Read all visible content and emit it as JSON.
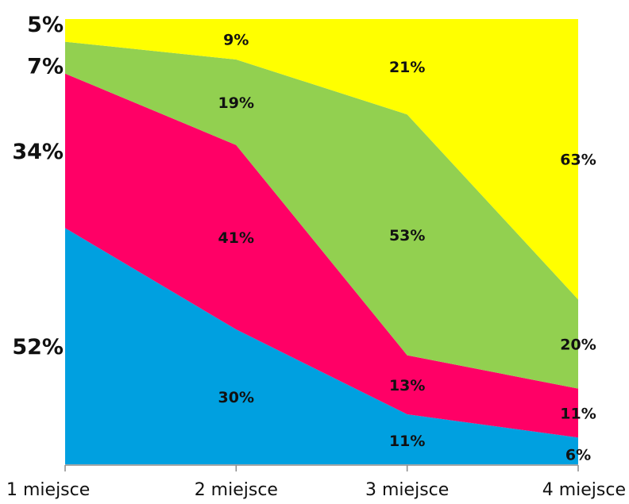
{
  "chart_data": {
    "type": "area",
    "stacked": true,
    "percent": true,
    "categories": [
      "1 miejsce",
      "2 miejsce",
      "3 miejsce",
      "4 miejsce"
    ],
    "series": [
      {
        "color": "#00a0e0",
        "values": [
          52,
          30,
          11,
          6
        ],
        "labels": [
          "52%",
          "30%",
          "11%",
          "6%"
        ]
      },
      {
        "color": "#ff0066",
        "values": [
          34,
          41,
          13,
          11
        ],
        "labels": [
          "34%",
          "41%",
          "13%",
          "11%"
        ]
      },
      {
        "color": "#92d050",
        "values": [
          7,
          19,
          53,
          20
        ],
        "labels": [
          "7%",
          "19%",
          "53%",
          "20%"
        ]
      },
      {
        "color": "#ffff00",
        "values": [
          5,
          9,
          21,
          63
        ],
        "labels": [
          "5%",
          "9%",
          "21%",
          "63%"
        ]
      }
    ],
    "ylim": [
      0,
      100
    ],
    "grid": false,
    "legend": "none"
  }
}
